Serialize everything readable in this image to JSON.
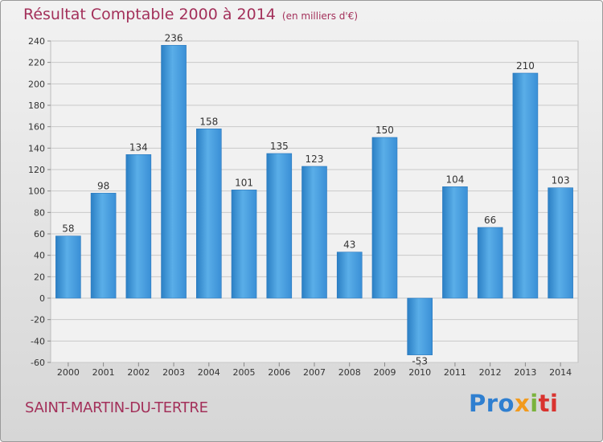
{
  "header": {
    "title": "Résultat Comptable 2000 à 2014",
    "unit": "(en milliers d'€)"
  },
  "footer": {
    "town": "SAINT-MARTIN-DU-TERTRE",
    "brand": {
      "p1": "Pro",
      "p2": "x",
      "p3": "i",
      "p4": "ti"
    }
  },
  "colors": {
    "bar": "#3d95dc",
    "title": "#a3305a"
  },
  "chart_data": {
    "type": "bar",
    "title": "Résultat Comptable 2000 à 2014",
    "subtitle": "(en milliers d'€)",
    "categories": [
      "2000",
      "2001",
      "2002",
      "2003",
      "2004",
      "2005",
      "2006",
      "2007",
      "2008",
      "2009",
      "2010",
      "2011",
      "2012",
      "2013",
      "2014"
    ],
    "values": [
      58,
      98,
      134,
      236,
      158,
      101,
      135,
      123,
      43,
      150,
      -53,
      104,
      66,
      210,
      103
    ],
    "ylim": [
      -60,
      240
    ],
    "yticks": [
      -60,
      -40,
      -20,
      0,
      20,
      40,
      60,
      80,
      100,
      120,
      140,
      160,
      180,
      200,
      220,
      240
    ],
    "grid": true
  }
}
